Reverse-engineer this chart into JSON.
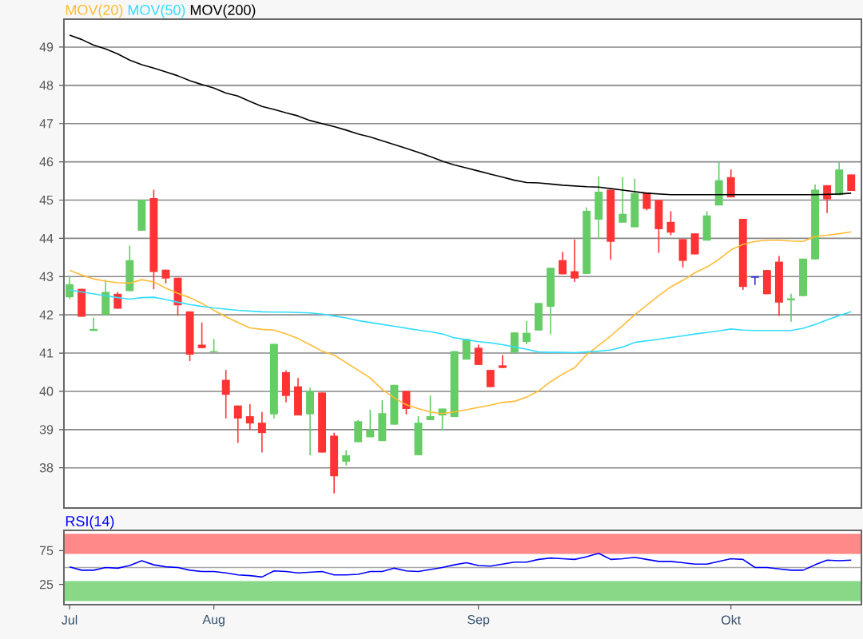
{
  "chart_data": [
    {
      "type": "candlestick",
      "categories": [
        null,
        null,
        null,
        null,
        null,
        null,
        null,
        null,
        null,
        null,
        null,
        null,
        null,
        null,
        null,
        null,
        null,
        null,
        null,
        null,
        null,
        null,
        null,
        null,
        null,
        null,
        null,
        null,
        null,
        null,
        null,
        null,
        null,
        null,
        null,
        null,
        null,
        null,
        null,
        null,
        null,
        null,
        null,
        null,
        null,
        null,
        null,
        null,
        null,
        null,
        null,
        null,
        null,
        null,
        null,
        null,
        null,
        null,
        null,
        null,
        null,
        null,
        null,
        null,
        null,
        null
      ],
      "ohlc": [
        [
          42.46,
          43.0,
          42.41,
          42.8
        ],
        [
          42.68,
          42.68,
          41.95,
          41.95
        ],
        [
          41.58,
          41.93,
          41.58,
          41.63
        ],
        [
          42.0,
          42.92,
          42.0,
          42.6
        ],
        [
          42.55,
          42.6,
          42.16,
          42.16
        ],
        [
          42.62,
          43.81,
          42.62,
          43.43
        ],
        [
          44.2,
          45.01,
          44.2,
          45.01
        ],
        [
          45.05,
          45.27,
          42.67,
          43.12
        ],
        [
          43.18,
          43.18,
          42.82,
          42.95
        ],
        [
          42.97,
          42.97,
          41.98,
          42.25
        ],
        [
          42.09,
          42.09,
          40.79,
          40.96
        ],
        [
          41.22,
          41.8,
          41.13,
          41.13
        ],
        [
          41.02,
          41.37,
          41.02,
          41.05
        ],
        [
          40.3,
          40.56,
          39.29,
          39.91
        ],
        [
          39.63,
          39.63,
          38.65,
          39.29
        ],
        [
          39.35,
          39.67,
          38.99,
          39.16
        ],
        [
          39.18,
          39.46,
          38.4,
          38.91
        ],
        [
          39.4,
          41.24,
          39.29,
          41.24
        ],
        [
          40.5,
          40.55,
          39.71,
          39.88
        ],
        [
          40.13,
          40.35,
          39.37,
          39.37
        ],
        [
          39.4,
          40.1,
          38.33,
          40.01
        ],
        [
          39.97,
          39.97,
          38.4,
          38.4
        ],
        [
          38.84,
          38.92,
          37.33,
          37.78
        ],
        [
          38.16,
          38.46,
          38.06,
          38.33
        ],
        [
          38.67,
          39.25,
          38.67,
          39.22
        ],
        [
          38.8,
          39.52,
          38.8,
          38.99
        ],
        [
          38.7,
          39.77,
          38.7,
          39.43
        ],
        [
          39.13,
          40.17,
          39.13,
          40.17
        ],
        [
          40.01,
          40.01,
          39.4,
          39.54
        ],
        [
          38.33,
          39.35,
          38.33,
          39.18
        ],
        [
          39.25,
          39.89,
          39.25,
          39.35
        ],
        [
          39.37,
          39.55,
          38.99,
          39.55
        ],
        [
          39.33,
          41.05,
          39.33,
          41.05
        ],
        [
          40.83,
          41.37,
          40.83,
          41.37
        ],
        [
          41.14,
          41.22,
          40.69,
          40.69
        ],
        [
          40.56,
          40.56,
          40.11,
          40.11
        ],
        [
          40.68,
          40.95,
          40.61,
          40.61
        ],
        [
          41.01,
          41.54,
          41.01,
          41.54
        ],
        [
          41.29,
          41.84,
          41.23,
          41.53
        ],
        [
          41.59,
          42.31,
          41.59,
          42.31
        ],
        [
          42.21,
          43.23,
          41.49,
          43.23
        ],
        [
          43.43,
          43.65,
          43.06,
          43.06
        ],
        [
          43.14,
          43.97,
          42.86,
          42.95
        ],
        [
          43.07,
          44.81,
          43.07,
          44.72
        ],
        [
          44.49,
          45.62,
          43.99,
          45.22
        ],
        [
          45.27,
          45.27,
          43.44,
          43.91
        ],
        [
          44.41,
          45.6,
          44.41,
          44.64
        ],
        [
          44.29,
          45.56,
          44.29,
          45.18
        ],
        [
          45.2,
          45.2,
          44.73,
          44.77
        ],
        [
          45.0,
          45.0,
          43.62,
          44.24
        ],
        [
          44.43,
          44.71,
          44.08,
          44.15
        ],
        [
          43.98,
          43.98,
          43.24,
          43.41
        ],
        [
          44.13,
          44.13,
          43.58,
          43.58
        ],
        [
          43.94,
          44.71,
          43.94,
          44.6
        ],
        [
          44.86,
          46.0,
          44.86,
          45.52
        ],
        [
          45.6,
          45.8,
          45.07,
          45.07
        ],
        [
          44.51,
          44.51,
          42.65,
          42.73
        ],
        [
          42.99,
          42.99,
          42.78,
          42.99
        ],
        [
          43.17,
          43.17,
          42.54,
          42.54
        ],
        [
          43.39,
          43.54,
          41.97,
          42.32
        ],
        [
          42.38,
          42.55,
          41.82,
          42.43
        ],
        [
          42.49,
          43.47,
          42.49,
          43.47
        ],
        [
          43.45,
          45.41,
          43.45,
          45.27
        ],
        [
          45.39,
          45.39,
          44.66,
          45.02
        ],
        [
          45.13,
          46.0,
          45.13,
          45.8
        ],
        [
          45.67,
          45.67,
          45.24,
          45.24
        ]
      ],
      "colors": [
        "#66cc66",
        "#ff3333",
        "#66cc66",
        "#66cc66",
        "#ff3333",
        "#66cc66",
        "#66cc66",
        "#ff3333",
        "#ff3333",
        "#ff3333",
        "#ff3333",
        "#ff3333",
        "#66cc66",
        "#ff3333",
        "#ff3333",
        "#ff3333",
        "#ff3333",
        "#66cc66",
        "#ff3333",
        "#ff3333",
        "#66cc66",
        "#ff3333",
        "#ff3333",
        "#66cc66",
        "#66cc66",
        "#66cc66",
        "#66cc66",
        "#66cc66",
        "#ff3333",
        "#66cc66",
        "#66cc66",
        "#66cc66",
        "#66cc66",
        "#66cc66",
        "#ff3333",
        "#ff3333",
        "#ff3333",
        "#66cc66",
        "#66cc66",
        "#66cc66",
        "#66cc66",
        "#ff3333",
        "#ff3333",
        "#66cc66",
        "#66cc66",
        "#ff3333",
        "#66cc66",
        "#66cc66",
        "#ff3333",
        "#ff3333",
        "#ff3333",
        "#ff3333",
        "#ff3333",
        "#66cc66",
        "#66cc66",
        "#ff3333",
        "#ff3333",
        "#3333cc",
        "#ff3333",
        "#ff3333",
        "#66cc66",
        "#66cc66",
        "#66cc66",
        "#ff3333",
        "#66cc66",
        "#ff3333"
      ],
      "series": [
        {
          "type": "line",
          "name": "MOV(20)",
          "color": "#ffbb33",
          "values": [
            43.16,
            43.04,
            42.94,
            42.88,
            42.84,
            42.83,
            42.92,
            42.86,
            42.7,
            42.56,
            42.45,
            42.3,
            42.12,
            41.95,
            41.8,
            41.66,
            41.62,
            41.6,
            41.5,
            41.38,
            41.22,
            41.05,
            40.95,
            40.75,
            40.55,
            40.35,
            40.05,
            39.83,
            39.65,
            39.55,
            39.46,
            39.42,
            39.46,
            39.52,
            39.58,
            39.64,
            39.71,
            39.74,
            39.85,
            40.01,
            40.25,
            40.45,
            40.62,
            40.96,
            41.2,
            41.45,
            41.72,
            42.0,
            42.25,
            42.5,
            42.73,
            42.9,
            43.1,
            43.25,
            43.45,
            43.7,
            43.84,
            43.92,
            43.95,
            43.95,
            43.93,
            43.92,
            44.05,
            44.08,
            44.12,
            44.17
          ]
        },
        {
          "type": "line",
          "name": "MOV(50)",
          "color": "#33ddff",
          "values": [
            42.65,
            42.6,
            42.55,
            42.5,
            42.45,
            42.41,
            42.45,
            42.46,
            42.4,
            42.33,
            42.27,
            42.22,
            42.18,
            42.15,
            42.12,
            42.1,
            42.08,
            42.07,
            42.07,
            42.06,
            42.05,
            42.02,
            41.97,
            41.92,
            41.85,
            41.8,
            41.75,
            41.7,
            41.65,
            41.6,
            41.56,
            41.5,
            41.4,
            41.35,
            41.3,
            41.27,
            41.22,
            41.16,
            41.1,
            41.03,
            41.02,
            41.02,
            41.01,
            41.03,
            41.05,
            41.08,
            41.16,
            41.28,
            41.32,
            41.36,
            41.41,
            41.45,
            41.5,
            41.54,
            41.58,
            41.63,
            41.6,
            41.59,
            41.59,
            41.59,
            41.59,
            41.65,
            41.75,
            41.87,
            41.98,
            42.08
          ]
        },
        {
          "type": "line",
          "name": "MOV(200)",
          "color": "#000000",
          "values": [
            49.31,
            49.2,
            49.05,
            48.95,
            48.82,
            48.66,
            48.54,
            48.45,
            48.35,
            48.25,
            48.12,
            48.02,
            47.93,
            47.8,
            47.72,
            47.58,
            47.45,
            47.37,
            47.28,
            47.2,
            47.08,
            47.0,
            46.92,
            46.83,
            46.73,
            46.65,
            46.55,
            46.45,
            46.35,
            46.25,
            46.14,
            46.02,
            45.92,
            45.84,
            45.76,
            45.68,
            45.6,
            45.52,
            45.46,
            45.45,
            45.42,
            45.39,
            45.37,
            45.35,
            45.34,
            45.3,
            45.26,
            45.22,
            45.18,
            45.16,
            45.14,
            45.14,
            45.14,
            45.14,
            45.14,
            45.14,
            45.14,
            45.14,
            45.14,
            45.14,
            45.14,
            45.14,
            45.14,
            45.15,
            45.16,
            45.18
          ]
        }
      ],
      "ylim": [
        36.95,
        49.73
      ],
      "yticks": [
        38,
        39,
        40,
        41,
        42,
        43,
        44,
        45,
        46,
        47,
        48,
        49
      ],
      "grid": "y",
      "legend": "top left"
    },
    {
      "type": "line",
      "categories": [
        "Jul",
        null,
        null,
        null,
        null,
        null,
        null,
        null,
        null,
        null,
        null,
        null,
        "Aug",
        null,
        null,
        null,
        null,
        null,
        null,
        null,
        null,
        null,
        null,
        null,
        null,
        null,
        null,
        null,
        null,
        null,
        null,
        null,
        null,
        null,
        "Sep",
        null,
        null,
        null,
        null,
        null,
        null,
        null,
        null,
        null,
        null,
        null,
        null,
        null,
        null,
        null,
        null,
        null,
        null,
        null,
        null,
        "Okt",
        null,
        null,
        null,
        null,
        null,
        null,
        null,
        null,
        null,
        null
      ],
      "series": [
        {
          "name": "RSI(14)",
          "color": "#0000ff",
          "values": [
            51,
            46,
            46,
            50,
            49,
            53,
            60,
            54,
            51,
            50,
            46,
            44,
            44,
            42,
            39,
            38,
            36,
            45,
            44,
            42,
            43,
            44,
            39,
            39,
            40,
            44,
            44,
            49,
            45,
            44,
            47,
            50,
            54,
            57,
            53,
            52,
            55,
            58,
            58,
            62,
            64,
            63,
            62,
            66,
            71,
            62,
            63,
            65,
            62,
            59,
            59,
            57,
            55,
            55,
            59,
            63,
            62,
            50,
            50,
            48,
            46,
            46,
            54,
            61,
            60,
            61
          ]
        }
      ],
      "bands": [
        {
          "axis": "y",
          "from": 70,
          "to": 100,
          "color": "#ff8888"
        },
        {
          "axis": "y",
          "from": 0,
          "to": 30,
          "color": "#88d888"
        }
      ],
      "ref_lines": [
        {
          "axis": "y",
          "value": 50,
          "color": "#aaaaaa"
        }
      ],
      "ylim": [
        -5,
        105
      ],
      "yticks": [
        25,
        75
      ],
      "legend": "top left"
    }
  ]
}
